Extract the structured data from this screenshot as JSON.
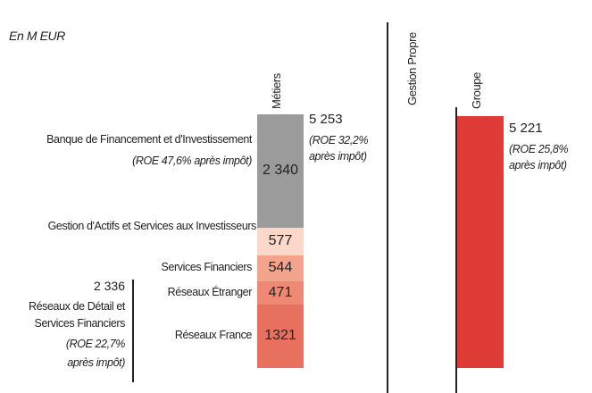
{
  "chart_data": {
    "type": "stacked-bar",
    "unit_label": "En M EUR",
    "categories": [
      "Métiers",
      "Gestion Propre",
      "Groupe"
    ],
    "segments": [
      {
        "name": "Réseaux France",
        "color": "#e8705e",
        "value": 1321
      },
      {
        "name": "Réseaux Étranger",
        "color": "#ee8a73",
        "value": 471
      },
      {
        "name": "Services Financiers",
        "color": "#f3a48d",
        "value": 544
      },
      {
        "name": "Gestion d'Actifs et Services aux Investisseurs",
        "color": "#fbd8ca",
        "value": 577
      },
      {
        "name": "Banque de Financement et d'Investissement",
        "color": "#9b9b9b",
        "value": 2340,
        "value_label": "2 340",
        "note": "(ROE 47,6% après impôt)"
      }
    ],
    "group": {
      "name": "Réseaux de Détail et Services Financiers",
      "value": 2336,
      "value_label": "2 336",
      "note": "(ROE 22,7% après impôt)"
    },
    "totals": [
      5253,
      null,
      5221
    ],
    "total_labels": [
      "5 253",
      null,
      "5 221"
    ],
    "total_notes": [
      "(ROE 32,2% après impôt)",
      null,
      "(ROE 25,8% après impôt)"
    ],
    "group_color": "#e03c37"
  }
}
